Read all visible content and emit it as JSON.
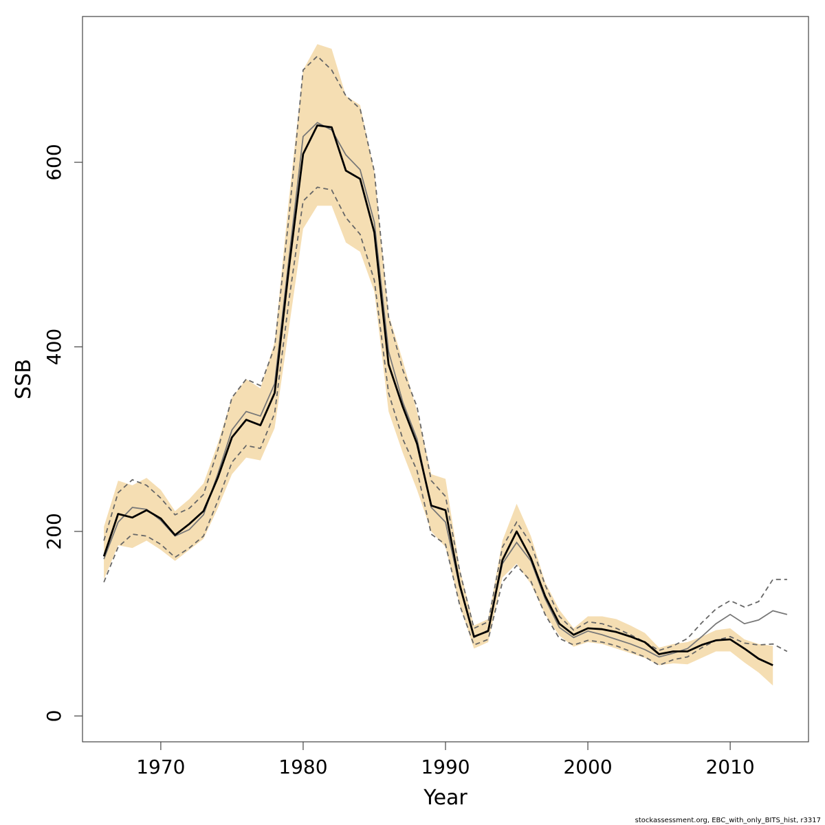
{
  "chart_data": {
    "type": "line",
    "xlabel": "Year",
    "ylabel": "SSB",
    "xlim": [
      1964.5,
      2015.5
    ],
    "ylim": [
      -28,
      758
    ],
    "x_ticks": [
      1970,
      1980,
      1990,
      2000,
      2010
    ],
    "y_ticks": [
      0,
      200,
      400,
      600
    ],
    "footnote": "stockassessment.org, EBC_with_only_BITS_hist, r3317",
    "colors": {
      "band": "#f5deb3",
      "main": "#000000",
      "retro": "#777777",
      "dashed": "#666666",
      "frame": "#444444"
    },
    "series": [
      {
        "role": "confidence-band",
        "x": [
          1966,
          1967,
          1968,
          1969,
          1970,
          1971,
          1972,
          1973,
          1974,
          1975,
          1976,
          1977,
          1978,
          1979,
          1980,
          1981,
          1982,
          1983,
          1984,
          1985,
          1986,
          1987,
          1988,
          1989,
          1990,
          1991,
          1992,
          1993,
          1994,
          1995,
          1996,
          1997,
          1998,
          1999,
          2000,
          2001,
          2002,
          2003,
          2004,
          2005,
          2006,
          2007,
          2008,
          2009,
          2010,
          2011,
          2012,
          2013
        ],
        "lower": [
          148,
          185,
          182,
          190,
          180,
          168,
          180,
          192,
          225,
          262,
          280,
          277,
          312,
          420,
          528,
          553,
          553,
          513,
          503,
          460,
          330,
          285,
          245,
          200,
          183,
          120,
          73,
          80,
          150,
          165,
          143,
          110,
          87,
          75,
          80,
          78,
          73,
          68,
          63,
          55,
          57,
          56,
          63,
          70,
          70,
          58,
          47,
          33
        ],
        "upper": [
          205,
          255,
          250,
          258,
          245,
          222,
          235,
          252,
          295,
          345,
          365,
          355,
          405,
          560,
          700,
          728,
          723,
          672,
          662,
          590,
          435,
          385,
          330,
          262,
          257,
          160,
          98,
          105,
          190,
          230,
          195,
          145,
          115,
          95,
          108,
          108,
          105,
          98,
          90,
          74,
          78,
          80,
          86,
          93,
          95,
          83,
          78,
          76
        ]
      },
      {
        "role": "estimate",
        "x": [
          1966,
          1967,
          1968,
          1969,
          1970,
          1971,
          1972,
          1973,
          1974,
          1975,
          1976,
          1977,
          1978,
          1979,
          1980,
          1981,
          1982,
          1983,
          1984,
          1985,
          1986,
          1987,
          1988,
          1989,
          1990,
          1991,
          1992,
          1993,
          1994,
          1995,
          1996,
          1997,
          1998,
          1999,
          2000,
          2001,
          2002,
          2003,
          2004,
          2005,
          2006,
          2007,
          2008,
          2009,
          2010,
          2011,
          2012,
          2013
        ],
        "y": [
          173,
          219,
          215,
          223,
          214,
          196,
          208,
          222,
          258,
          302,
          321,
          315,
          350,
          485,
          609,
          640,
          638,
          591,
          582,
          524,
          381,
          335,
          295,
          228,
          223,
          142,
          86,
          92,
          169,
          200,
          171,
          130,
          100,
          88,
          95,
          94,
          91,
          86,
          80,
          67,
          70,
          70,
          77,
          82,
          83,
          73,
          62,
          55
        ]
      },
      {
        "role": "retrospective",
        "x": [
          1966,
          1967,
          1968,
          1969,
          1970,
          1971,
          1972,
          1973,
          1974,
          1975,
          1976,
          1977,
          1978,
          1979,
          1980,
          1981,
          1982,
          1983,
          1984,
          1985,
          1986,
          1987,
          1988,
          1989,
          1990,
          1991,
          1992,
          1993,
          1994,
          1995,
          1996,
          1997,
          1998,
          1999,
          2000,
          2001,
          2002,
          2003,
          2004,
          2005,
          2006,
          2007,
          2008,
          2009,
          2010,
          2011,
          2012,
          2013,
          2014
        ],
        "y": [
          170,
          210,
          226,
          224,
          212,
          195,
          202,
          218,
          262,
          310,
          330,
          325,
          360,
          495,
          628,
          643,
          635,
          608,
          592,
          535,
          395,
          340,
          300,
          226,
          210,
          140,
          85,
          93,
          165,
          188,
          168,
          127,
          96,
          85,
          92,
          88,
          83,
          78,
          72,
          64,
          68,
          73,
          86,
          100,
          110,
          100,
          104,
          114,
          110
        ]
      },
      {
        "role": "retrospective-upper",
        "x": [
          1966,
          1967,
          1968,
          1969,
          1970,
          1971,
          1972,
          1973,
          1974,
          1975,
          1976,
          1977,
          1978,
          1979,
          1980,
          1981,
          1982,
          1983,
          1984,
          1985,
          1986,
          1987,
          1988,
          1989,
          1990,
          1991,
          1992,
          1993,
          1994,
          1995,
          1996,
          1997,
          1998,
          1999,
          2000,
          2001,
          2002,
          2003,
          2004,
          2005,
          2006,
          2007,
          2008,
          2009,
          2010,
          2011,
          2012,
          2013,
          2014
        ],
        "y": [
          190,
          242,
          256,
          250,
          236,
          218,
          225,
          240,
          288,
          345,
          365,
          358,
          400,
          540,
          700,
          715,
          700,
          672,
          658,
          590,
          432,
          375,
          335,
          255,
          238,
          157,
          95,
          102,
          183,
          210,
          187,
          142,
          108,
          93,
          102,
          100,
          95,
          88,
          80,
          71,
          76,
          84,
          101,
          116,
          125,
          118,
          124,
          148,
          148
        ]
      },
      {
        "role": "retrospective-lower",
        "x": [
          1966,
          1967,
          1968,
          1969,
          1970,
          1971,
          1972,
          1973,
          1974,
          1975,
          1976,
          1977,
          1978,
          1979,
          1980,
          1981,
          1982,
          1983,
          1984,
          1985,
          1986,
          1987,
          1988,
          1989,
          1990,
          1991,
          1992,
          1993,
          1994,
          1995,
          1996,
          1997,
          1998,
          1999,
          2000,
          2001,
          2002,
          2003,
          2004,
          2005,
          2006,
          2007,
          2008,
          2009,
          2010,
          2011,
          2012,
          2013,
          2014
        ],
        "y": [
          145,
          183,
          197,
          195,
          186,
          172,
          182,
          195,
          233,
          275,
          293,
          290,
          328,
          450,
          558,
          573,
          570,
          540,
          522,
          472,
          350,
          300,
          266,
          197,
          186,
          120,
          77,
          83,
          145,
          163,
          146,
          110,
          84,
          77,
          82,
          80,
          76,
          70,
          64,
          55,
          61,
          64,
          74,
          82,
          86,
          79,
          77,
          78,
          70
        ]
      }
    ]
  }
}
